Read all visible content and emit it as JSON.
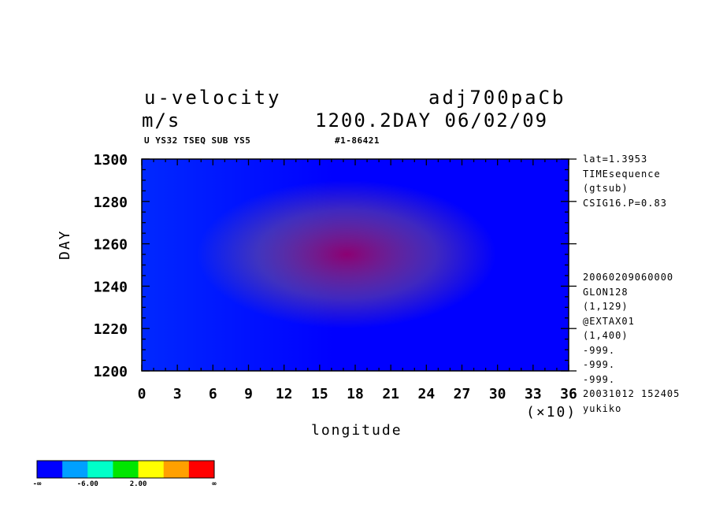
{
  "header": {
    "var_name": "u-velocity",
    "units": "m/s",
    "run_name": "adj700paCb",
    "time_label": "1200.2DAY 06/02/09",
    "sub_left": "U YS32 TSEQ SUB YS5",
    "sub_right": "#1-86421"
  },
  "side_notes": {
    "top": [
      "lat=1.3953",
      "TIMEsequence",
      "(gtsub)",
      "CSIG16.P=0.83"
    ],
    "bottom": [
      "20060209060000",
      "GLON128",
      "(1,129)",
      "@EXTAX01",
      "(1,400)",
      "-999.",
      "-999.",
      "-999.",
      "20031012 152405",
      "yukiko"
    ]
  },
  "chart_data": {
    "type": "heatmap",
    "xlabel": "longitude",
    "x_multiplier_label": "(×10)",
    "ylabel": "DAY",
    "xlim": [
      0,
      36
    ],
    "ylim": [
      1200,
      1300
    ],
    "x_ticks": [
      "0",
      "3",
      "6",
      "9",
      "12",
      "15",
      "18",
      "21",
      "24",
      "27",
      "30",
      "33",
      "36"
    ],
    "y_ticks": [
      "1200",
      "1220",
      "1240",
      "1260",
      "1280",
      "1300"
    ],
    "palette": [
      "#0000ff",
      "#00a0ff",
      "#00ffc8",
      "#00e600",
      "#ffff00",
      "#ffa000",
      "#ff0000"
    ],
    "legend_labels": [
      "-∞",
      "-6.00",
      "2.00",
      "∞"
    ]
  }
}
